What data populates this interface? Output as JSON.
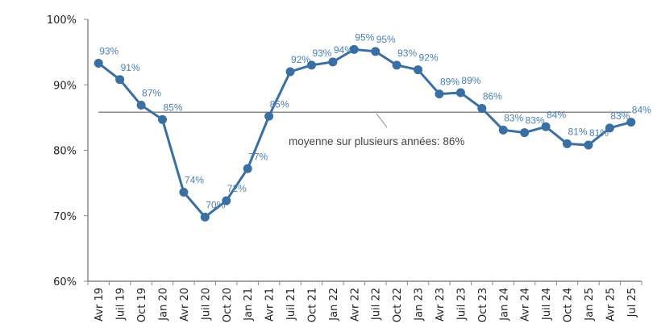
{
  "chart_data": {
    "type": "line",
    "categories": [
      "Avr 19",
      "Juil 19",
      "Oct 19",
      "Jan 20",
      "Avr 20",
      "Juil 20",
      "Oct 20",
      "Jan 21",
      "Avr 21",
      "Juil 21",
      "Oct 21",
      "Jan 22",
      "Avr 22",
      "Juil 22",
      "Oct 22",
      "Jan 23",
      "Avr 23",
      "Juil 23",
      "Oct 23",
      "Jan 24",
      "Avr 24",
      "Juil 24",
      "Oct 24",
      "Jan 25",
      "Avr 25",
      "Jul 25"
    ],
    "values": [
      93.3,
      90.8,
      86.9,
      84.7,
      73.6,
      69.8,
      72.3,
      77.2,
      85.2,
      92.0,
      93.0,
      93.5,
      95.4,
      95.1,
      93.0,
      92.3,
      88.6,
      88.8,
      86.4,
      83.1,
      82.7,
      83.6,
      81.0,
      80.8,
      83.4,
      84.3
    ],
    "data_labels": [
      "93%",
      "91%",
      "87%",
      "85%",
      "74%",
      "70%",
      "72%",
      "77%",
      "85%",
      "92%",
      "93%",
      "94%",
      "95%",
      "95%",
      "93%",
      "92%",
      "89%",
      "89%",
      "86%",
      "83%",
      "83%",
      "84%",
      "81%",
      "81%",
      "83%",
      "84%"
    ],
    "yticks": [
      "60%",
      "70%",
      "80%",
      "90%",
      "100%"
    ],
    "ytick_values": [
      60,
      70,
      80,
      90,
      100
    ],
    "ylim": [
      60,
      100
    ],
    "average": {
      "value": 86,
      "label": "moyenne sur plusieurs années: 86%"
    },
    "title": "",
    "xlabel": "",
    "ylabel": "",
    "grid": false,
    "colors": {
      "series": "#3a6fa3",
      "labels": "#4a80b4",
      "average": "#888888",
      "axis": "#888888"
    }
  }
}
